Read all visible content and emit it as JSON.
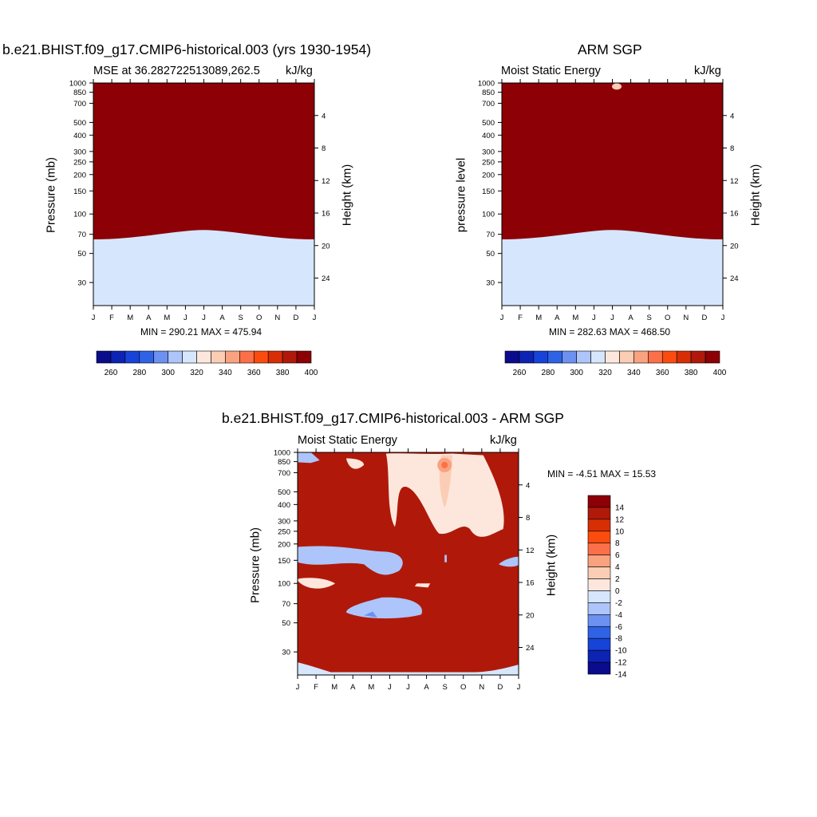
{
  "chart_data": [
    {
      "type": "contour",
      "title": "b.e21.BHIST.f09_g17.CMIP6-historical.003 (yrs 1930-1954)",
      "left_subtitle": "MSE at 36.282722513089,262.5",
      "right_subtitle": "kJ/kg",
      "ylabel": "Pressure (mb)",
      "ylabel_right": "Height (km)",
      "months": [
        "J",
        "F",
        "M",
        "A",
        "M",
        "J",
        "J",
        "A",
        "S",
        "O",
        "N",
        "D",
        "J"
      ],
      "pressure_ticks": [
        "30",
        "50",
        "70",
        "100",
        "150",
        "200",
        "250",
        "300",
        "400",
        "500",
        "700",
        "850",
        "1000"
      ],
      "pressure_values": [
        30,
        50,
        70,
        100,
        150,
        200,
        250,
        300,
        400,
        500,
        700,
        850,
        1000
      ],
      "height_ticks": [
        "24",
        "20",
        "16",
        "12",
        "8",
        "4"
      ],
      "height_values": [
        24,
        20,
        16,
        12,
        8,
        4
      ],
      "stats": "MIN = 290.21 MAX = 475.94",
      "min": 290.21,
      "max": 475.94,
      "colorbar": {
        "labels": [
          "260",
          "280",
          "300",
          "320",
          "340",
          "360",
          "380",
          "400"
        ],
        "levels": [
          260,
          270,
          280,
          290,
          300,
          310,
          320,
          330,
          340,
          350,
          360,
          370,
          380,
          390,
          400
        ]
      }
    },
    {
      "type": "contour",
      "title": "ARM SGP",
      "left_subtitle": "Moist Static Energy",
      "right_subtitle": "kJ/kg",
      "ylabel": "pressure level",
      "ylabel_right": "Height (km)",
      "months": [
        "J",
        "F",
        "M",
        "A",
        "M",
        "J",
        "J",
        "A",
        "S",
        "O",
        "N",
        "D",
        "J"
      ],
      "pressure_ticks": [
        "30",
        "50",
        "70",
        "100",
        "150",
        "200",
        "250",
        "300",
        "400",
        "500",
        "700",
        "850",
        "1000"
      ],
      "pressure_values": [
        30,
        50,
        70,
        100,
        150,
        200,
        250,
        300,
        400,
        500,
        700,
        850,
        1000
      ],
      "height_ticks": [
        "24",
        "20",
        "16",
        "12",
        "8",
        "4"
      ],
      "height_values": [
        24,
        20,
        16,
        12,
        8,
        4
      ],
      "stats": "MIN = 282.63 MAX = 468.50",
      "min": 282.63,
      "max": 468.5,
      "colorbar": {
        "labels": [
          "260",
          "280",
          "300",
          "320",
          "340",
          "360",
          "380",
          "400"
        ],
        "levels": [
          260,
          270,
          280,
          290,
          300,
          310,
          320,
          330,
          340,
          350,
          360,
          370,
          380,
          390,
          400
        ]
      }
    },
    {
      "type": "contour",
      "title": "b.e21.BHIST.f09_g17.CMIP6-historical.003 - ARM SGP",
      "left_subtitle": "Moist Static Energy",
      "right_subtitle": "kJ/kg",
      "ylabel": "Pressure (mb)",
      "ylabel_right": "Height (km)",
      "months": [
        "J",
        "F",
        "M",
        "A",
        "M",
        "J",
        "J",
        "A",
        "S",
        "O",
        "N",
        "D",
        "J"
      ],
      "pressure_ticks": [
        "30",
        "50",
        "70",
        "100",
        "150",
        "200",
        "250",
        "300",
        "400",
        "500",
        "700",
        "850",
        "1000"
      ],
      "pressure_values": [
        30,
        50,
        70,
        100,
        150,
        200,
        250,
        300,
        400,
        500,
        700,
        850,
        1000
      ],
      "height_ticks": [
        "24",
        "20",
        "16",
        "12",
        "8",
        "4"
      ],
      "height_values": [
        24,
        20,
        16,
        12,
        8,
        4
      ],
      "stats": "MIN =  -4.51 MAX =  15.53",
      "min": -4.51,
      "max": 15.53,
      "colorbar": {
        "labels": [
          "14",
          "12",
          "10",
          "8",
          "6",
          "4",
          "2",
          "0",
          "-2",
          "-4",
          "-6",
          "-8",
          "-10",
          "-12",
          "-14"
        ],
        "levels": [
          14,
          12,
          10,
          8,
          6,
          4,
          2,
          0,
          -2,
          -4,
          -6,
          -8,
          -10,
          -12,
          -14
        ]
      }
    }
  ],
  "colors": {
    "abs_palette": [
      "#0a0c8c",
      "#0c23b4",
      "#1743d8",
      "#2f63e6",
      "#6d91f1",
      "#adc5fa",
      "#d6e6fd",
      "#fde7dd",
      "#fbcdb5",
      "#f9a27f",
      "#fb7048",
      "#fb4c0f",
      "#d72e05",
      "#b0190a",
      "#8c0006"
    ],
    "diff_palette": [
      "#8c0006",
      "#b0190a",
      "#d72e05",
      "#fb4c0f",
      "#fb7048",
      "#f9a27f",
      "#fbcdb5",
      "#fde7dd",
      "#d6e6fd",
      "#adc5fa",
      "#6d91f1",
      "#2f63e6",
      "#1743d8",
      "#0c23b4",
      "#0a0c8c"
    ]
  }
}
